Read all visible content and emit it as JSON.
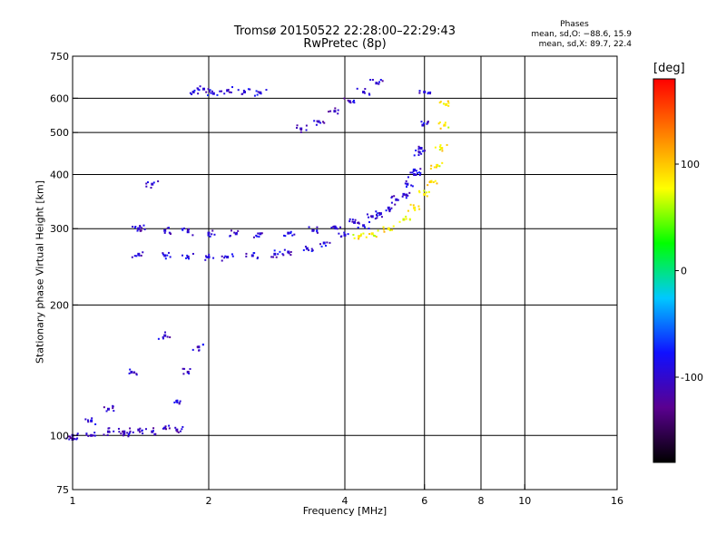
{
  "title": "Tromsø 20150522 22:28:00–22:29:43",
  "subtitle": "RwPretec (8p)",
  "phases": {
    "header": "Phases",
    "o_mode": "mean, sd,O: −88.6, 15.9",
    "x_mode": "mean, sd,X: 89.7, 22.4"
  },
  "colorbar": {
    "unit": "[deg]",
    "range": [
      -180,
      180
    ],
    "ticks": [
      100,
      0,
      -100
    ],
    "colors": [
      "#000000",
      "#5a0090",
      "#1010ff",
      "#00c8ff",
      "#00ff00",
      "#ffff00",
      "#ff8000",
      "#ff0000"
    ]
  },
  "chart_data": {
    "type": "scatter",
    "title": "Tromsø 20150522 22:28:00–22:29:43",
    "subtitle": "RwPretec (8p)",
    "xlabel": "Frequency [MHz]",
    "ylabel": "Stationary phase Virtual Height [km]",
    "x_scale": "log",
    "y_scale": "log",
    "xlim": [
      1,
      16
    ],
    "ylim": [
      75,
      750
    ],
    "x_ticks": [
      1,
      2,
      4,
      6,
      8,
      10,
      16
    ],
    "y_ticks": [
      75,
      100,
      200,
      300,
      400,
      500,
      600,
      750
    ],
    "x_gridlines": [
      2,
      4,
      6,
      8,
      10
    ],
    "y_gridlines": [
      100,
      200,
      300,
      400,
      500,
      600
    ],
    "color_by": "phase",
    "series": [
      {
        "role": "o-mode trace F2 (blue)",
        "phase": -95,
        "x": [
          1.4,
          1.6,
          1.8,
          2.0,
          2.2,
          2.5,
          2.8,
          3.0,
          3.3,
          3.6,
          4.0,
          4.4,
          4.8,
          5.2,
          5.5,
          5.7,
          5.85,
          5.95,
          6.0
        ],
        "y": [
          262,
          260,
          258,
          258,
          258,
          260,
          262,
          265,
          270,
          278,
          290,
          305,
          325,
          350,
          380,
          410,
          450,
          520,
          620
        ]
      },
      {
        "role": "o-mode trace upper (blue)",
        "phase": -95,
        "x": [
          1.4,
          1.6,
          1.8,
          2.0,
          2.3,
          2.6,
          3.0,
          3.4,
          3.8,
          4.2,
          4.6,
          5.0,
          5.4,
          5.7,
          5.9
        ],
        "y": [
          300,
          297,
          295,
          293,
          292,
          292,
          293,
          297,
          303,
          310,
          320,
          335,
          360,
          400,
          460
        ]
      },
      {
        "role": "x-mode trace (yellow/green)",
        "phase": 85,
        "x": [
          4.3,
          4.6,
          5.0,
          5.4,
          5.7,
          6.0,
          6.2,
          6.4,
          6.55,
          6.65,
          6.7
        ],
        "y": [
          288,
          292,
          300,
          315,
          335,
          360,
          385,
          420,
          460,
          520,
          580
        ]
      },
      {
        "role": "upper arc (blue)",
        "phase": -100,
        "x": [
          3.2,
          3.5,
          3.8,
          4.1,
          4.4,
          4.7
        ],
        "y": [
          510,
          530,
          560,
          590,
          620,
          650
        ]
      },
      {
        "role": "low-frequency spread echoes (blue)",
        "phase": -100,
        "x": [
          1.0,
          1.1,
          1.2,
          1.3,
          1.35,
          1.4,
          1.5,
          1.6,
          1.7,
          1.8,
          1.9
        ],
        "y": [
          100,
          108,
          115,
          102,
          140,
          300,
          380,
          170,
          120,
          140,
          160
        ]
      },
      {
        "role": "E-layer echoes near 100 km (blue)",
        "phase": -105,
        "x": [
          1.0,
          1.1,
          1.2,
          1.3,
          1.4,
          1.5,
          1.6,
          1.7
        ],
        "y": [
          98,
          100,
          102,
          101,
          103,
          102,
          104,
          103
        ]
      },
      {
        "role": "echoes near 620 km (blue)",
        "phase": -95,
        "x": [
          1.85,
          1.95,
          2.05,
          2.2,
          2.4,
          2.6
        ],
        "y": [
          620,
          630,
          615,
          625,
          620,
          618
        ]
      }
    ]
  }
}
